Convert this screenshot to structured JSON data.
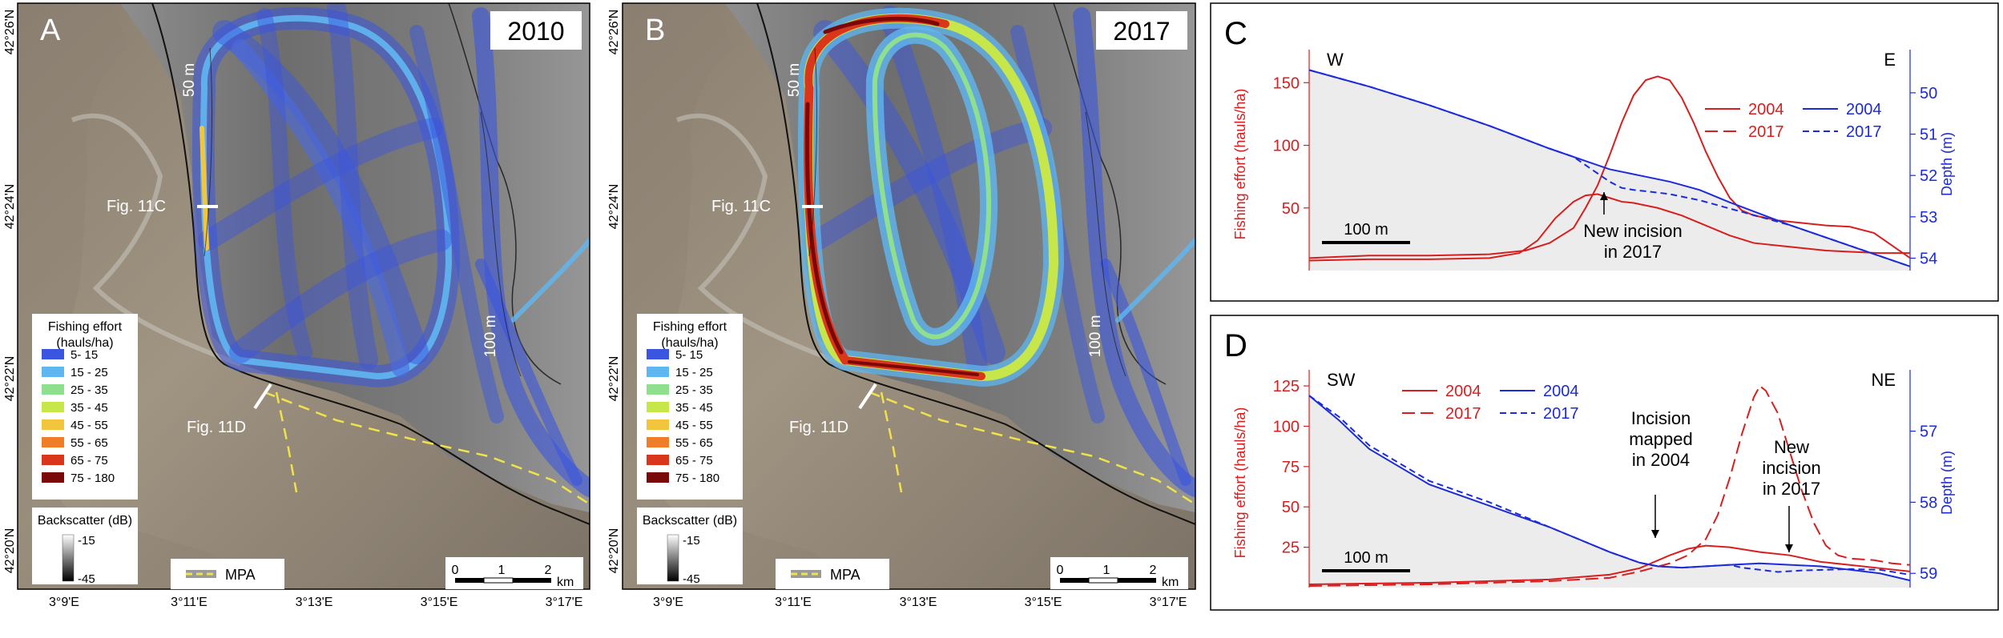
{
  "colors": {
    "fishing": "#d81e1e",
    "depth": "#1c2bd9",
    "legend_bins": [
      "#3a55e0",
      "#5fb7f2",
      "#8ee08f",
      "#c7e64a",
      "#f2c63c",
      "#f07d28",
      "#d9361c",
      "#7a0808"
    ]
  },
  "map_a": {
    "letter": "A",
    "year": "2010",
    "lat_labels": [
      "42°26'N",
      "42°24'N",
      "42°22'N",
      "42°20'N"
    ],
    "lon_labels": [
      "3°9'E",
      "3°11'E",
      "3°13'E",
      "3°15'E",
      "3°17'E"
    ],
    "contour_50": "50 m",
    "contour_100": "100 m",
    "fig_c": "Fig. 11C",
    "fig_d": "Fig. 11D",
    "legend": {
      "title_1": "Fishing effort",
      "title_2": "(hauls/ha)",
      "bins": [
        "5- 15",
        "15 - 25",
        "25 - 35",
        "35 - 45",
        "45 - 55",
        "55 - 65",
        "65 - 75",
        "75 - 180"
      ]
    },
    "backscatter": {
      "title": "Backscatter (dB)",
      "max": "-15",
      "min": "-45"
    },
    "mpa": "MPA",
    "scale": {
      "t0": "0",
      "t1": "1",
      "t2": "2",
      "unit": "km"
    }
  },
  "map_b": {
    "letter": "B",
    "year": "2017",
    "lat_labels": [
      "42°26'N",
      "42°24'N",
      "42°22'N",
      "42°20'N"
    ],
    "lon_labels": [
      "3°9'E",
      "3°11'E",
      "3°13'E",
      "3°15'E",
      "3°17'E"
    ],
    "contour_50": "50 m",
    "contour_100": "100 m",
    "fig_c": "Fig. 11C",
    "fig_d": "Fig. 11D",
    "legend": {
      "title_1": "Fishing effort",
      "title_2": "(hauls/ha)",
      "bins": [
        "5- 15",
        "15 - 25",
        "25 - 35",
        "35 - 45",
        "45 - 55",
        "55 - 65",
        "65 - 75",
        "75 - 180"
      ]
    },
    "backscatter": {
      "title": "Backscatter (dB)",
      "max": "-15",
      "min": "-45"
    },
    "mpa": "MPA",
    "scale": {
      "t0": "0",
      "t1": "1",
      "t2": "2",
      "unit": "km"
    }
  },
  "chart_data": [
    {
      "type": "line",
      "panel": "C",
      "left_end": "W",
      "right_end": "E",
      "ylabel_left": "Fishing effort (hauls/ha)",
      "ylabel_right": "Depth (m)",
      "ylim_left": [
        0,
        170
      ],
      "yticks_left": [
        50,
        100,
        150
      ],
      "ylim_right": [
        49.15,
        54.3
      ],
      "yticks_right": [
        50,
        51,
        52,
        53,
        54
      ],
      "x_range": [
        0,
        100
      ],
      "scale_bar": "100 m",
      "annotations": [
        "New incision",
        "in 2017"
      ],
      "legend": {
        "f2004": "2004",
        "f2017": "2017",
        "d2004": "2004",
        "d2017": "2017"
      },
      "series": [
        {
          "name": "2004",
          "kind": "fishing",
          "dash": false,
          "x": [
            0,
            10,
            20,
            30,
            35,
            38,
            41,
            44,
            46,
            48,
            50,
            52,
            54,
            58,
            62,
            66,
            70,
            74,
            78,
            82,
            86,
            90,
            95,
            100
          ],
          "values": [
            8,
            9,
            9,
            10,
            14,
            24,
            42,
            55,
            60,
            61,
            58,
            55,
            54,
            50,
            44,
            36,
            28,
            22,
            20,
            18,
            16,
            15,
            14,
            14
          ]
        },
        {
          "name": "2017",
          "kind": "fishing",
          "dash": false,
          "x": [
            0,
            10,
            20,
            30,
            36,
            40,
            44,
            46,
            48,
            50,
            52,
            54,
            56,
            58,
            60,
            62,
            64,
            66,
            68,
            70,
            72,
            74,
            78,
            82,
            86,
            90,
            94,
            97,
            100
          ],
          "values": [
            10,
            12,
            12,
            13,
            16,
            22,
            34,
            50,
            68,
            92,
            118,
            140,
            152,
            155,
            152,
            138,
            118,
            95,
            75,
            58,
            48,
            44,
            40,
            38,
            36,
            35,
            30,
            20,
            10
          ]
        },
        {
          "name": "2004",
          "kind": "depth",
          "dash": false,
          "x": [
            0,
            10,
            20,
            30,
            40,
            45,
            50,
            55,
            60,
            65,
            70,
            80,
            90,
            100
          ],
          "values": [
            49.45,
            49.85,
            50.3,
            50.8,
            51.35,
            51.6,
            51.85,
            52.0,
            52.15,
            52.35,
            52.65,
            53.2,
            53.7,
            54.2
          ]
        },
        {
          "name": "2017",
          "kind": "depth",
          "dash": true,
          "x": [
            0,
            10,
            20,
            30,
            40,
            44,
            46,
            48,
            50,
            52,
            54,
            56,
            60,
            65,
            70,
            80,
            90,
            100
          ],
          "values": [
            49.45,
            49.85,
            50.3,
            50.8,
            51.35,
            51.55,
            51.75,
            51.95,
            52.15,
            52.3,
            52.35,
            52.38,
            52.45,
            52.6,
            52.8,
            53.2,
            53.7,
            54.2
          ]
        }
      ]
    },
    {
      "type": "line",
      "panel": "D",
      "left_end": "SW",
      "right_end": "NE",
      "ylabel_left": "Fishing effort (hauls/ha)",
      "ylabel_right": "Depth (m)",
      "ylim_left": [
        0,
        130
      ],
      "yticks_left": [
        25,
        50,
        75,
        100,
        125
      ],
      "ylim_right": [
        56.25,
        59.2
      ],
      "yticks_right": [
        57,
        58,
        59
      ],
      "x_range": [
        0,
        100
      ],
      "scale_bar": "100 m",
      "annotations": [
        "Incision",
        "mapped",
        "in 2004",
        "New",
        "incision",
        "in 2017"
      ],
      "legend": {
        "f2004": "2004",
        "f2017": "2017",
        "d2004": "2004",
        "d2017": "2017"
      },
      "series": [
        {
          "name": "2004",
          "kind": "fishing",
          "dash": false,
          "x": [
            0,
            20,
            40,
            50,
            55,
            60,
            63,
            66,
            70,
            75,
            80,
            85,
            90,
            95,
            100
          ],
          "values": [
            2,
            3,
            5,
            8,
            12,
            20,
            24,
            26,
            25,
            22,
            20,
            16,
            14,
            12,
            10
          ]
        },
        {
          "name": "2017",
          "kind": "fishing",
          "dash": true,
          "x": [
            0,
            20,
            40,
            50,
            55,
            60,
            63,
            66,
            68,
            70,
            72,
            74,
            75,
            76,
            78,
            80,
            82,
            84,
            86,
            88,
            90,
            94,
            97,
            100
          ],
          "values": [
            1,
            2,
            4,
            6,
            10,
            15,
            20,
            30,
            45,
            68,
            95,
            118,
            125,
            122,
            108,
            84,
            60,
            40,
            26,
            20,
            18,
            17,
            15,
            14
          ]
        },
        {
          "name": "2004",
          "kind": "depth",
          "dash": false,
          "x": [
            0,
            5,
            10,
            20,
            30,
            40,
            50,
            55,
            58,
            62,
            66,
            70,
            75,
            80,
            85,
            90,
            95,
            100
          ],
          "values": [
            56.5,
            56.85,
            57.25,
            57.75,
            58.05,
            58.35,
            58.7,
            58.85,
            58.9,
            58.92,
            58.9,
            58.88,
            58.86,
            58.88,
            58.9,
            58.95,
            59.0,
            59.1
          ]
        },
        {
          "name": "2017",
          "kind": "depth",
          "dash": true,
          "x": [
            0,
            5,
            10,
            20,
            30,
            40,
            50,
            55,
            58,
            62,
            66,
            70,
            72,
            75,
            78,
            82,
            86,
            90,
            95,
            100
          ],
          "values": [
            56.5,
            56.8,
            57.2,
            57.7,
            58.0,
            58.35,
            58.7,
            58.85,
            58.9,
            58.92,
            58.9,
            58.88,
            58.92,
            58.95,
            58.98,
            58.96,
            58.95,
            58.94,
            58.95,
            59.02
          ]
        }
      ]
    }
  ]
}
